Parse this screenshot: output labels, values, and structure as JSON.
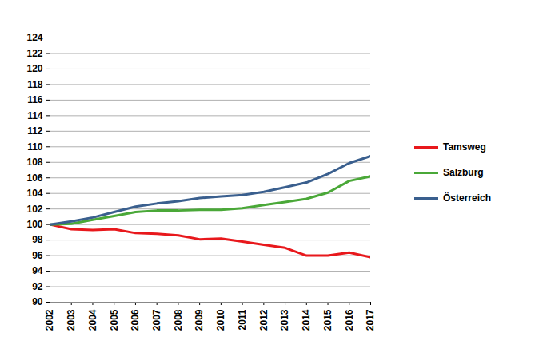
{
  "chart_data": {
    "type": "line",
    "x": [
      2002,
      2003,
      2004,
      2005,
      2006,
      2007,
      2008,
      2009,
      2010,
      2011,
      2012,
      2013,
      2014,
      2015,
      2016,
      2017
    ],
    "series": [
      {
        "name": "Tamsweg",
        "color": "#e8181c",
        "values": [
          100,
          99.4,
          99.3,
          99.4,
          98.9,
          98.8,
          98.6,
          98.1,
          98.2,
          97.8,
          97.4,
          97.0,
          96.0,
          96.0,
          96.4,
          95.8
        ]
      },
      {
        "name": "Salzburg",
        "color": "#4aa838",
        "values": [
          100,
          100.1,
          100.6,
          101.1,
          101.6,
          101.8,
          101.8,
          101.9,
          101.9,
          102.1,
          102.5,
          102.9,
          103.3,
          104.1,
          105.6,
          106.2
        ]
      },
      {
        "name": "Österreich",
        "color": "#3a5f8e",
        "values": [
          100,
          100.4,
          100.9,
          101.6,
          102.3,
          102.7,
          103.0,
          103.4,
          103.6,
          103.8,
          104.2,
          104.8,
          105.4,
          106.5,
          107.9,
          108.8
        ]
      }
    ],
    "xlim": [
      2002,
      2017
    ],
    "xticks": [
      2002,
      2003,
      2004,
      2005,
      2006,
      2007,
      2008,
      2009,
      2010,
      2011,
      2012,
      2013,
      2014,
      2015,
      2016,
      2017
    ],
    "ylim": [
      90,
      124
    ],
    "yticks": [
      90,
      92,
      94,
      96,
      98,
      100,
      102,
      104,
      106,
      108,
      110,
      112,
      114,
      116,
      118,
      120,
      122,
      124
    ],
    "grid": true,
    "legend": "right"
  }
}
